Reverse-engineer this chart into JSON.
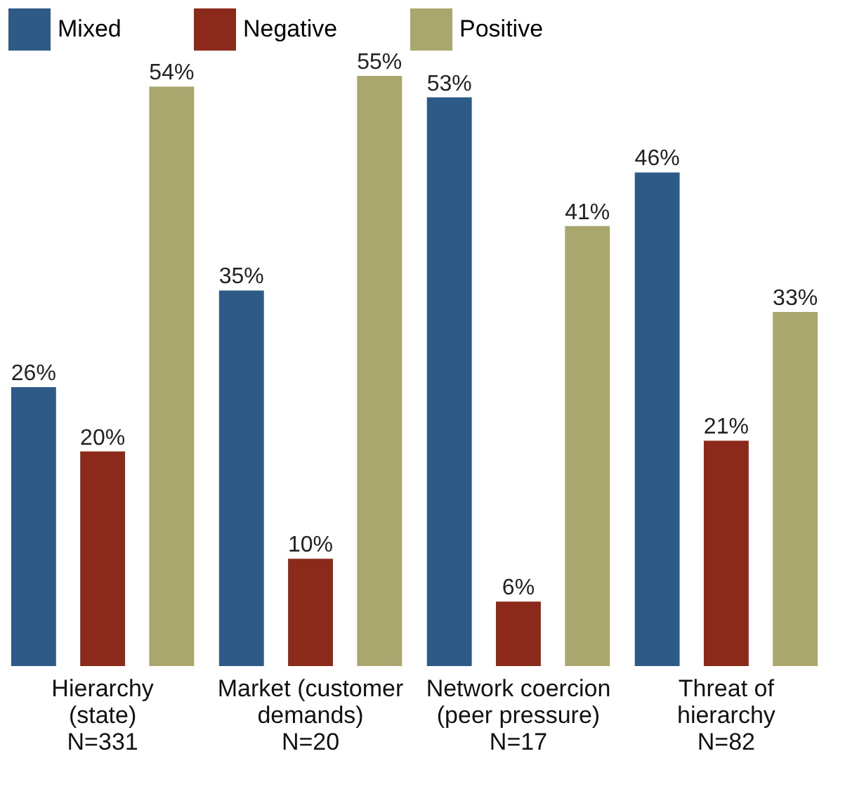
{
  "chart_data": {
    "type": "bar",
    "categories": [
      "Hierarchy\n(state)\nN=331",
      "Market (customer\ndemands)\nN=20",
      "Network coercion\n(peer pressure)\nN=17",
      "Threat of\nhierarchy\nN=82"
    ],
    "series": [
      {
        "name": "Mixed",
        "color": "#2e5a87",
        "values": [
          26,
          35,
          53,
          46
        ],
        "value_labels": [
          "26%",
          "35%",
          "53%",
          "46%"
        ]
      },
      {
        "name": "Negative",
        "color": "#8b2a1a",
        "values": [
          20,
          10,
          6,
          21
        ],
        "value_labels": [
          "20%",
          "10%",
          "6%",
          "21%"
        ]
      },
      {
        "name": "Positive",
        "color": "#a9a66e",
        "values": [
          54,
          55,
          41,
          33
        ],
        "value_labels": [
          "54%",
          "55%",
          "41%",
          "33%"
        ]
      }
    ],
    "legend": "top",
    "grid": false,
    "tick_labels": "x"
  }
}
